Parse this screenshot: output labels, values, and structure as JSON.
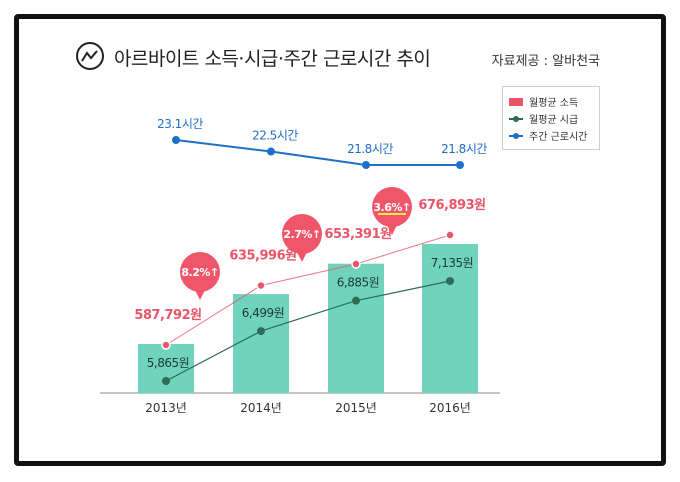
{
  "header": {
    "title": "아르바이트 소득·시급·주간 근로시간 추이",
    "source": "자료제공 : 알바천국"
  },
  "colors": {
    "bar": "#6fd3be",
    "income": "#e9566a",
    "wage": "#2f6b55",
    "hours": "#1f6fc7",
    "callout": "#f0566a",
    "axis": "#888888"
  },
  "icons": {
    "title": "trend-line-icon"
  },
  "legend": {
    "position": "top-right",
    "items": [
      {
        "label": "월평균 소득",
        "marker": "rect",
        "color_key": "income"
      },
      {
        "label": "월평균 시급",
        "marker": "line-dot",
        "color_key": "wage"
      },
      {
        "label": "주간 근로시간",
        "marker": "line-dot",
        "color_key": "hours"
      }
    ]
  },
  "chart_data": {
    "type": "bar",
    "categories": [
      "2013년",
      "2014년",
      "2015년",
      "2016년"
    ],
    "series": [
      {
        "name": "월평균 소득",
        "type": "line",
        "values": [
          587792,
          635996,
          653391,
          676893
        ],
        "labels": [
          "587,792원",
          "635,996원",
          "653,391원",
          "676,893원"
        ]
      },
      {
        "name": "월평균 시급",
        "type": "bar+line",
        "values": [
          5865,
          6499,
          6885,
          7135
        ],
        "labels": [
          "5,865원",
          "6,499원",
          "6,885원",
          "7,135원"
        ]
      },
      {
        "name": "주간 근로시간",
        "type": "line",
        "values": [
          23.1,
          22.5,
          21.8,
          21.8
        ],
        "labels": [
          "23.1시간",
          "22.5시간",
          "21.8시간",
          "21.8시간"
        ]
      }
    ],
    "callouts": [
      {
        "between": [
          "2013년",
          "2014년"
        ],
        "label": "8.2%↑"
      },
      {
        "between": [
          "2014년",
          "2015년"
        ],
        "label": "2.7%↑"
      },
      {
        "between": [
          "2015년",
          "2016년"
        ],
        "label": "3.6%↑"
      }
    ],
    "grid": false
  }
}
